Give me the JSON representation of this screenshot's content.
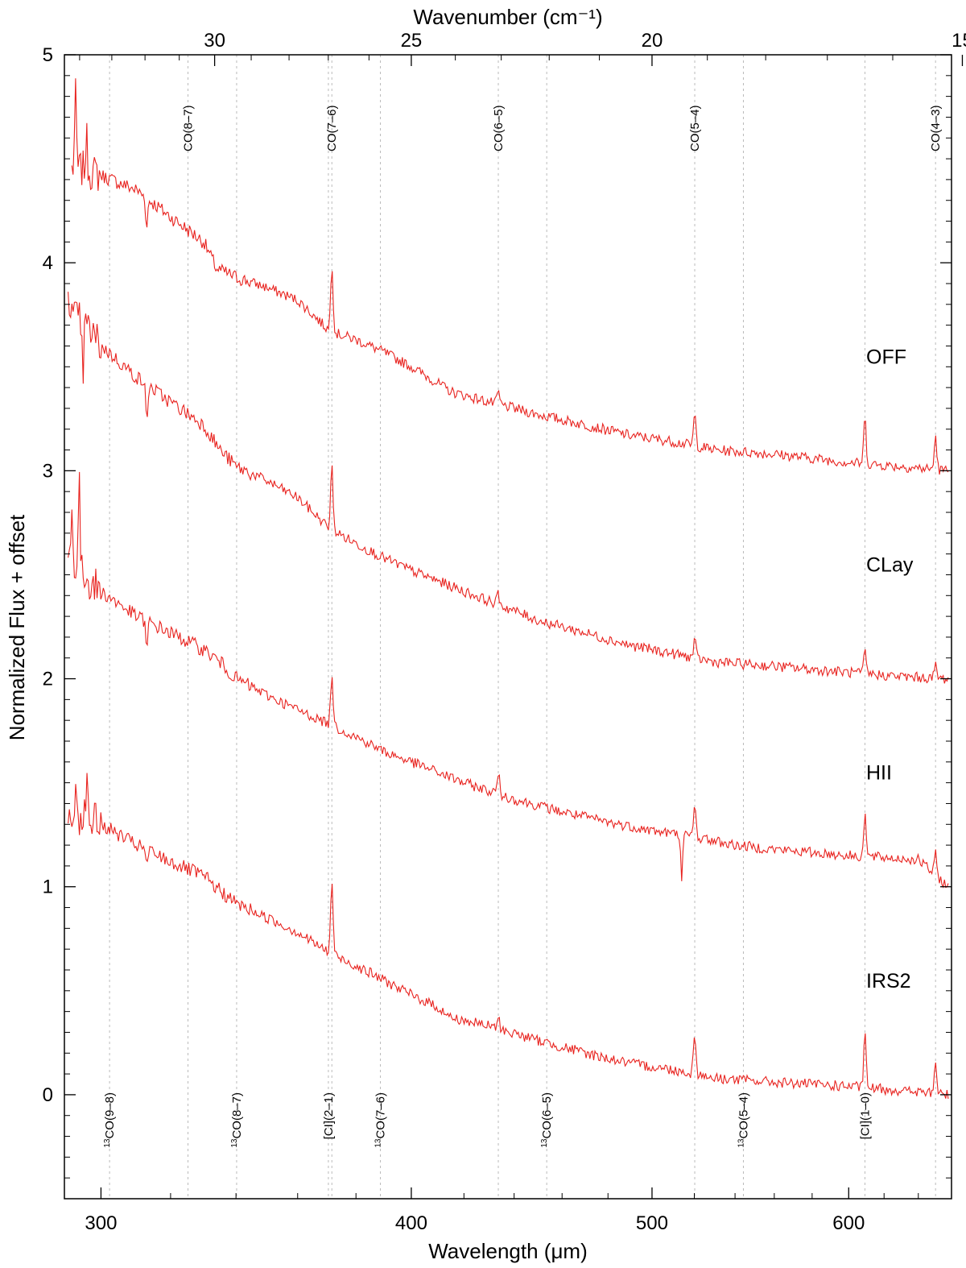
{
  "chart_data": {
    "type": "line",
    "xlabel": "Wavelength (μm)",
    "ylabel": "Normalized Flux + offset",
    "top_xlabel": "Wavenumber (cm⁻¹)",
    "x_scale": "log",
    "xlim": [
      290,
      660
    ],
    "ylim": [
      -0.5,
      5.0
    ],
    "x_ticks": [
      300,
      400,
      500,
      600
    ],
    "y_ticks": [
      0,
      1,
      2,
      3,
      4,
      5
    ],
    "top_ticks": [
      30,
      25,
      20,
      15
    ],
    "grid": false,
    "line_color": "#e8231f",
    "line_marker_color": "#bbbbbb",
    "upper_lines": [
      {
        "label": "CO(8–7)",
        "x": 325.2
      },
      {
        "label": "CO(7–6)",
        "x": 371.6
      },
      {
        "label": "CO(6–5)",
        "x": 433.6
      },
      {
        "label": "CO(5–4)",
        "x": 520.2
      },
      {
        "label": "CO(4–3)",
        "x": 650.3
      }
    ],
    "lower_lines": [
      {
        "label": "13CO(9–8)",
        "x": 302.4
      },
      {
        "label": "13CO(8–7)",
        "x": 340.2
      },
      {
        "label": "[CI](2–1)",
        "x": 370.4
      },
      {
        "label": "13CO(7–6)",
        "x": 388.7
      },
      {
        "label": "13CO(6–5)",
        "x": 453.5
      },
      {
        "label": "13CO(5–4)",
        "x": 544.2
      },
      {
        "label": "[CI](1–0)",
        "x": 609.1
      }
    ],
    "series": [
      {
        "name": "OFF",
        "offset": 3,
        "label_y": 3.55,
        "points": [
          [
            292,
            1.45
          ],
          [
            295,
            1.45
          ],
          [
            300,
            1.42
          ],
          [
            310,
            1.35
          ],
          [
            320,
            1.22
          ],
          [
            330,
            1.1
          ],
          [
            334,
            0.97
          ],
          [
            340,
            0.93
          ],
          [
            350,
            0.88
          ],
          [
            360,
            0.82
          ],
          [
            371,
            0.67
          ],
          [
            380,
            0.63
          ],
          [
            390,
            0.57
          ],
          [
            400,
            0.5
          ],
          [
            410,
            0.42
          ],
          [
            415,
            0.38
          ],
          [
            430,
            0.33
          ],
          [
            450,
            0.27
          ],
          [
            470,
            0.22
          ],
          [
            490,
            0.17
          ],
          [
            510,
            0.14
          ],
          [
            530,
            0.1
          ],
          [
            560,
            0.08
          ],
          [
            600,
            0.04
          ],
          [
            630,
            0.02
          ],
          [
            658,
            0.0
          ]
        ],
        "peaks": [
          [
            371.6,
            0.33
          ],
          [
            433.6,
            0.06
          ],
          [
            520.2,
            0.15
          ],
          [
            609.1,
            0.22
          ],
          [
            650.3,
            0.16
          ]
        ],
        "spikes": [
          [
            293,
            0.35
          ],
          [
            296,
            0.15
          ],
          [
            313,
            -0.15
          ]
        ]
      },
      {
        "name": "CLay",
        "offset": 2,
        "label_y": 2.55,
        "points": [
          [
            291,
            1.75
          ],
          [
            295,
            1.72
          ],
          [
            300,
            1.6
          ],
          [
            310,
            1.45
          ],
          [
            320,
            1.33
          ],
          [
            330,
            1.22
          ],
          [
            335,
            1.1
          ],
          [
            340,
            1.02
          ],
          [
            350,
            0.95
          ],
          [
            360,
            0.87
          ],
          [
            371,
            0.72
          ],
          [
            380,
            0.65
          ],
          [
            390,
            0.58
          ],
          [
            400,
            0.52
          ],
          [
            420,
            0.42
          ],
          [
            450,
            0.28
          ],
          [
            470,
            0.22
          ],
          [
            490,
            0.16
          ],
          [
            510,
            0.12
          ],
          [
            530,
            0.08
          ],
          [
            560,
            0.06
          ],
          [
            600,
            0.03
          ],
          [
            630,
            0.01
          ],
          [
            658,
            0.0
          ]
        ],
        "peaks": [
          [
            371.6,
            0.3
          ],
          [
            433.6,
            0.05
          ],
          [
            520.2,
            0.08
          ],
          [
            609.1,
            0.1
          ],
          [
            650.3,
            0.06
          ]
        ],
        "spikes": [
          [
            291,
            0.2
          ],
          [
            295,
            -0.25
          ],
          [
            313,
            -0.2
          ]
        ]
      },
      {
        "name": "HII",
        "offset": 1,
        "label_y": 1.55,
        "points": [
          [
            291,
            1.6
          ],
          [
            295,
            1.5
          ],
          [
            300,
            1.42
          ],
          [
            310,
            1.3
          ],
          [
            320,
            1.22
          ],
          [
            330,
            1.14
          ],
          [
            335,
            1.08
          ],
          [
            340,
            1.0
          ],
          [
            350,
            0.92
          ],
          [
            360,
            0.85
          ],
          [
            371,
            0.78
          ],
          [
            380,
            0.72
          ],
          [
            390,
            0.65
          ],
          [
            400,
            0.6
          ],
          [
            420,
            0.5
          ],
          [
            440,
            0.42
          ],
          [
            460,
            0.36
          ],
          [
            480,
            0.31
          ],
          [
            500,
            0.27
          ],
          [
            520,
            0.24
          ],
          [
            540,
            0.2
          ],
          [
            560,
            0.18
          ],
          [
            600,
            0.15
          ],
          [
            640,
            0.13
          ],
          [
            658,
            0.0
          ]
        ],
        "peaks": [
          [
            371.6,
            0.25
          ],
          [
            433.6,
            0.1
          ],
          [
            520.2,
            0.15
          ],
          [
            609.1,
            0.2
          ],
          [
            650.3,
            0.1
          ]
        ],
        "spikes": [
          [
            292,
            0.2
          ],
          [
            294,
            0.4
          ],
          [
            313,
            -0.15
          ],
          [
            514,
            -0.2
          ]
        ]
      },
      {
        "name": "IRS2",
        "offset": 0,
        "label_y": 0.55,
        "points": [
          [
            291,
            1.3
          ],
          [
            295,
            1.35
          ],
          [
            300,
            1.3
          ],
          [
            310,
            1.2
          ],
          [
            320,
            1.12
          ],
          [
            330,
            1.05
          ],
          [
            335,
            0.98
          ],
          [
            340,
            0.92
          ],
          [
            350,
            0.85
          ],
          [
            360,
            0.78
          ],
          [
            371,
            0.68
          ],
          [
            380,
            0.62
          ],
          [
            390,
            0.55
          ],
          [
            400,
            0.48
          ],
          [
            410,
            0.42
          ],
          [
            415,
            0.37
          ],
          [
            430,
            0.33
          ],
          [
            450,
            0.26
          ],
          [
            470,
            0.2
          ],
          [
            490,
            0.15
          ],
          [
            510,
            0.12
          ],
          [
            530,
            0.08
          ],
          [
            560,
            0.06
          ],
          [
            600,
            0.04
          ],
          [
            630,
            0.02
          ],
          [
            658,
            0.0
          ]
        ],
        "peaks": [
          [
            371.6,
            0.35
          ],
          [
            433.6,
            0.05
          ],
          [
            520.2,
            0.2
          ],
          [
            609.1,
            0.25
          ],
          [
            650.3,
            0.15
          ]
        ],
        "spikes": [
          [
            293,
            0.2
          ],
          [
            296,
            0.15
          ],
          [
            313,
            -0.08
          ]
        ]
      }
    ]
  }
}
